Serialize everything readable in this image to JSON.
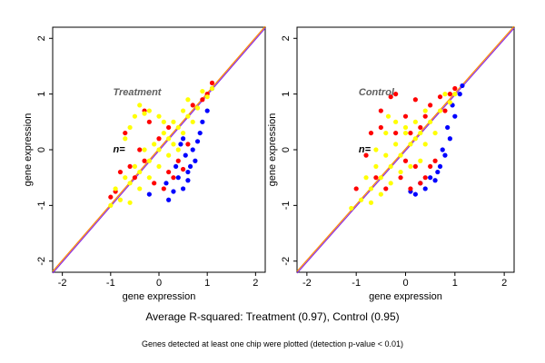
{
  "caption": "Average R-squared: Treatment (0.97), Control (0.95)",
  "footnote": "Genes detected at least one chip were plotted (detection p-value < 0.01)",
  "colors": {
    "series_blue": "#0000ff",
    "series_red": "#ff0000",
    "series_yellow": "#ffff00",
    "line_orange": "#ff8c00",
    "line_purple": "#8a2be2",
    "label_gray": "#606060"
  },
  "chart_data": [
    {
      "type": "scatter",
      "title": "Treatment",
      "annotation": "n=",
      "xlabel": "gene expression",
      "ylabel": "gene expression",
      "xlim": [
        -2.2,
        2.2
      ],
      "ylim": [
        -2.2,
        2.2
      ],
      "x_ticks": [
        "-2",
        "-1",
        "0",
        "1",
        "2"
      ],
      "y_ticks": [
        "-2",
        "-1",
        "0",
        "1",
        "2"
      ],
      "grid": false,
      "reference_lines": [
        {
          "type": "identity",
          "color": "orange"
        },
        {
          "type": "identity",
          "color": "purple"
        }
      ],
      "series": [
        {
          "color": "blue",
          "points": [
            [
              0.2,
              -0.9
            ],
            [
              0.3,
              -0.75
            ],
            [
              0.5,
              -0.7
            ],
            [
              0.6,
              -0.55
            ],
            [
              0.65,
              -0.3
            ],
            [
              0.55,
              -0.1
            ],
            [
              0.7,
              0.0
            ],
            [
              0.5,
              0.2
            ],
            [
              0.8,
              0.15
            ],
            [
              0.9,
              0.5
            ],
            [
              1.0,
              0.7
            ],
            [
              1.1,
              1.1
            ],
            [
              0.4,
              -0.5
            ],
            [
              0.35,
              -0.3
            ],
            [
              0.6,
              -0.4
            ],
            [
              0.15,
              -0.6
            ],
            [
              -0.2,
              -0.8
            ],
            [
              0.75,
              -0.2
            ],
            [
              0.45,
              0.1
            ],
            [
              0.85,
              0.3
            ]
          ]
        },
        {
          "color": "red",
          "points": [
            [
              -1.0,
              -0.85
            ],
            [
              -0.9,
              -0.75
            ],
            [
              -0.8,
              -0.4
            ],
            [
              -0.6,
              -0.3
            ],
            [
              -0.7,
              0.3
            ],
            [
              -0.3,
              0.7
            ],
            [
              -0.2,
              0.5
            ],
            [
              -0.1,
              -0.6
            ],
            [
              0.1,
              -0.7
            ],
            [
              0.2,
              -0.4
            ],
            [
              0.0,
              0.2
            ],
            [
              0.4,
              -0.2
            ],
            [
              0.6,
              0.1
            ],
            [
              0.9,
              0.9
            ],
            [
              1.0,
              1.0
            ],
            [
              1.1,
              1.2
            ],
            [
              -0.5,
              -0.5
            ],
            [
              -0.4,
              0.0
            ],
            [
              0.3,
              -0.5
            ],
            [
              0.2,
              0.4
            ],
            [
              0.7,
              0.8
            ],
            [
              -0.3,
              -0.2
            ],
            [
              0.5,
              -0.35
            ]
          ]
        },
        {
          "color": "yellow",
          "points": [
            [
              -1.0,
              -1.0
            ],
            [
              -0.8,
              -0.9
            ],
            [
              -0.6,
              -0.6
            ],
            [
              -0.4,
              -0.4
            ],
            [
              -0.2,
              -0.2
            ],
            [
              0.0,
              0.0
            ],
            [
              0.2,
              0.2
            ],
            [
              0.4,
              0.4
            ],
            [
              0.6,
              0.6
            ],
            [
              0.8,
              0.75
            ],
            [
              1.0,
              0.95
            ],
            [
              1.1,
              1.1
            ],
            [
              -0.7,
              -0.5
            ],
            [
              -0.5,
              -0.3
            ],
            [
              -0.3,
              0.0
            ],
            [
              -0.1,
              0.1
            ],
            [
              0.1,
              0.3
            ],
            [
              0.3,
              0.5
            ],
            [
              0.5,
              0.7
            ],
            [
              -0.9,
              -0.7
            ],
            [
              -0.5,
              0.6
            ],
            [
              -0.4,
              0.8
            ],
            [
              -0.3,
              0.65
            ],
            [
              -0.6,
              0.4
            ],
            [
              -0.2,
              0.7
            ],
            [
              0.0,
              0.6
            ],
            [
              0.1,
              0.5
            ],
            [
              -0.7,
              0.2
            ],
            [
              0.3,
              0.1
            ],
            [
              0.5,
              0.3
            ],
            [
              0.7,
              0.5
            ],
            [
              0.2,
              -0.1
            ],
            [
              0.4,
              0.0
            ],
            [
              0.0,
              -0.3
            ],
            [
              -0.2,
              -0.5
            ],
            [
              -0.4,
              -0.7
            ],
            [
              -0.6,
              -0.95
            ],
            [
              0.9,
              1.05
            ],
            [
              0.6,
              0.9
            ]
          ]
        }
      ]
    },
    {
      "type": "scatter",
      "title": "Control",
      "annotation": "n=",
      "xlabel": "gene expression",
      "ylabel": "gene expression",
      "xlim": [
        -2.2,
        2.2
      ],
      "ylim": [
        -2.2,
        2.2
      ],
      "x_ticks": [
        "-2",
        "-1",
        "0",
        "1",
        "2"
      ],
      "y_ticks": [
        "-2",
        "-1",
        "0",
        "1",
        "2"
      ],
      "grid": false,
      "reference_lines": [
        {
          "type": "identity",
          "color": "orange"
        },
        {
          "type": "identity",
          "color": "purple"
        }
      ],
      "series": [
        {
          "color": "blue",
          "points": [
            [
              0.2,
              -0.8
            ],
            [
              0.4,
              -0.7
            ],
            [
              0.6,
              -0.55
            ],
            [
              0.7,
              -0.3
            ],
            [
              0.8,
              -0.1
            ],
            [
              0.9,
              0.2
            ],
            [
              1.0,
              0.6
            ],
            [
              1.1,
              1.0
            ],
            [
              1.15,
              1.15
            ],
            [
              0.5,
              -0.5
            ],
            [
              0.3,
              -0.6
            ],
            [
              0.75,
              0.0
            ],
            [
              0.65,
              -0.4
            ],
            [
              0.85,
              0.4
            ],
            [
              0.95,
              0.8
            ],
            [
              0.1,
              -0.75
            ]
          ]
        },
        {
          "color": "red",
          "points": [
            [
              -1.0,
              -0.7
            ],
            [
              -0.8,
              -0.1
            ],
            [
              -0.7,
              0.3
            ],
            [
              -0.5,
              0.7
            ],
            [
              -0.3,
              0.95
            ],
            [
              -0.2,
              1.0
            ],
            [
              0.0,
              0.6
            ],
            [
              0.1,
              0.3
            ],
            [
              0.3,
              0.4
            ],
            [
              0.5,
              0.8
            ],
            [
              0.7,
              0.95
            ],
            [
              0.9,
              1.0
            ],
            [
              1.0,
              1.1
            ],
            [
              0.4,
              -0.5
            ],
            [
              0.5,
              -0.3
            ],
            [
              0.6,
              -0.2
            ],
            [
              0.3,
              -0.6
            ],
            [
              0.1,
              -0.7
            ],
            [
              -0.1,
              -0.5
            ],
            [
              -0.4,
              -0.7
            ],
            [
              -0.6,
              -0.5
            ],
            [
              -0.2,
              0.3
            ],
            [
              0.2,
              0.9
            ],
            [
              0.4,
              0.6
            ],
            [
              0.8,
              0.7
            ],
            [
              -0.5,
              0.4
            ],
            [
              0.0,
              -0.2
            ],
            [
              0.2,
              -0.3
            ]
          ]
        },
        {
          "color": "yellow",
          "points": [
            [
              -1.1,
              -1.05
            ],
            [
              -0.9,
              -0.9
            ],
            [
              -0.7,
              -0.7
            ],
            [
              -0.5,
              -0.5
            ],
            [
              -0.3,
              -0.3
            ],
            [
              -0.1,
              -0.1
            ],
            [
              0.1,
              0.1
            ],
            [
              0.3,
              0.3
            ],
            [
              0.5,
              0.5
            ],
            [
              0.7,
              0.7
            ],
            [
              0.9,
              0.85
            ],
            [
              1.0,
              1.0
            ],
            [
              -0.8,
              -0.5
            ],
            [
              -0.6,
              -0.3
            ],
            [
              -0.4,
              -0.1
            ],
            [
              -0.2,
              0.1
            ],
            [
              0.0,
              0.3
            ],
            [
              0.2,
              0.5
            ],
            [
              0.4,
              0.7
            ],
            [
              -0.6,
              0.0
            ],
            [
              -0.4,
              0.3
            ],
            [
              -0.2,
              0.5
            ],
            [
              0.0,
              0.4
            ],
            [
              0.2,
              0.2
            ],
            [
              0.4,
              0.1
            ],
            [
              0.6,
              0.3
            ],
            [
              0.3,
              -0.2
            ],
            [
              0.1,
              -0.3
            ],
            [
              -0.1,
              -0.4
            ],
            [
              -0.3,
              -0.6
            ],
            [
              -0.5,
              -0.8
            ],
            [
              -0.7,
              -0.95
            ],
            [
              0.8,
              1.0
            ],
            [
              -0.35,
              0.6
            ]
          ]
        }
      ]
    }
  ]
}
